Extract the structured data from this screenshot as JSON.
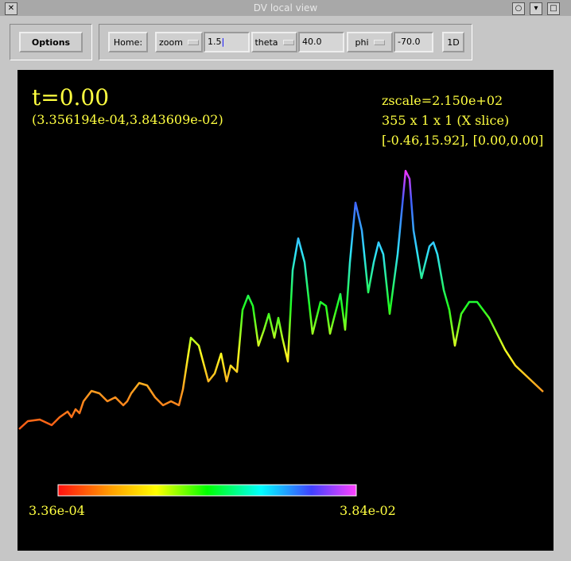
{
  "window": {
    "title": "DV local view",
    "close": "✕"
  },
  "toolbar": {
    "options": "Options",
    "home": "Home:",
    "zoom": {
      "label": "zoom",
      "value": "1.5"
    },
    "theta": {
      "label": "theta",
      "value": "40.0"
    },
    "phi": {
      "label": "phi",
      "value": "-70.0"
    },
    "mode": "1D"
  },
  "plot": {
    "time": "t=0.00",
    "range": "(3.356194e-04,3.843609e-02)",
    "info": [
      "zscale=2.150e+02",
      "355 x 1 x 1 (X slice)",
      "[-0.46,15.92], [0.00,0.00]"
    ],
    "colorbar": {
      "min": "3.36e-04",
      "max": "3.84e-02"
    }
  }
}
